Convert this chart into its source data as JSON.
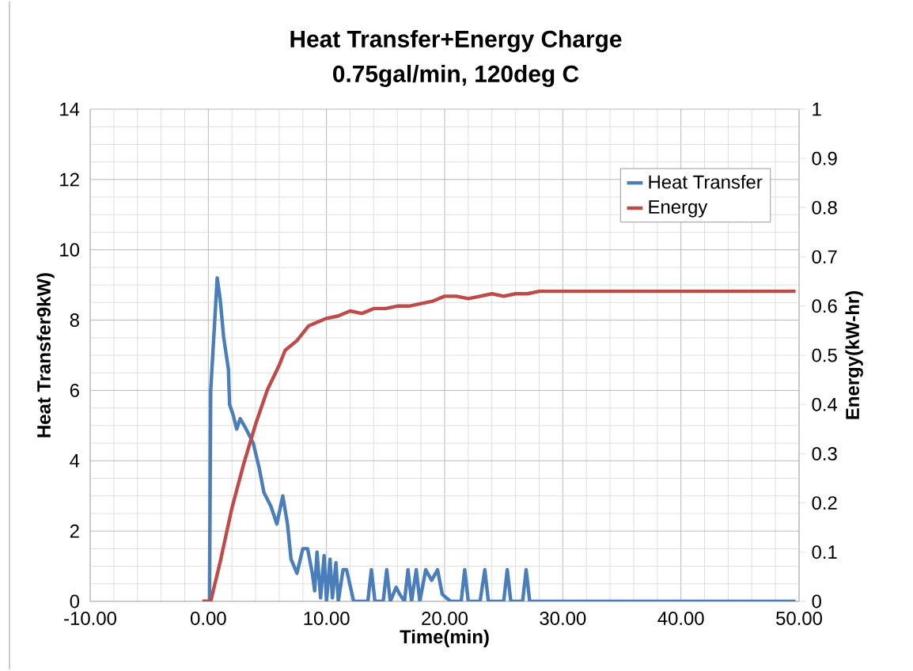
{
  "chart_data": {
    "type": "line",
    "title": "Heat Transfer+Energy Charge",
    "subtitle": "0.75gal/min, 120deg C",
    "xlabel": "Time(min)",
    "ylabel": "Heat Transfer9kW)",
    "y2label": "Energy(kW-hr)",
    "xlim": [
      -10,
      50
    ],
    "xticks": [
      {
        "value": -10,
        "label": "-10.00"
      },
      {
        "value": 0,
        "label": "0.00"
      },
      {
        "value": 10,
        "label": "10.00"
      },
      {
        "value": 20,
        "label": "20.00"
      },
      {
        "value": 30,
        "label": "30.00"
      },
      {
        "value": 40,
        "label": "40.00"
      },
      {
        "value": 50,
        "label": "50.00"
      }
    ],
    "ylim": [
      0,
      14
    ],
    "yticks": [
      0,
      2,
      4,
      6,
      8,
      10,
      12,
      14
    ],
    "y2lim": [
      0,
      1
    ],
    "y2ticks": [
      0,
      0.1,
      0.2,
      0.3,
      0.4,
      0.5,
      0.6,
      0.7,
      0.8,
      0.9,
      1
    ],
    "grid": true,
    "legend": "top right",
    "series": [
      {
        "name": "Heat Transfer",
        "color": "#4a7ebb",
        "x": [
          -0.5,
          0.1,
          0.2,
          0.75,
          1.0,
          1.3,
          1.7,
          1.8,
          2.1,
          2.4,
          2.7,
          3.2,
          3.8,
          4.3,
          4.7,
          5.3,
          5.8,
          6.3,
          6.7,
          7.0,
          7.5,
          8.0,
          8.4,
          8.8,
          9.0,
          9.2,
          9.5,
          9.8,
          10.0,
          10.3,
          10.5,
          10.8,
          11.0,
          11.4,
          11.7,
          12.3,
          13.5,
          13.8,
          14.1,
          14.8,
          15.1,
          15.4,
          15.9,
          16.2,
          16.6,
          16.9,
          17.2,
          17.6,
          17.9,
          18.4,
          18.9,
          19.4,
          19.8,
          20.5,
          21.4,
          21.7,
          22.0,
          23.0,
          23.4,
          23.7,
          25.0,
          25.3,
          25.6,
          26.6,
          26.9,
          27.2,
          49.7
        ],
        "values": [
          0,
          0,
          6,
          9.2,
          8.6,
          7.5,
          6.6,
          5.6,
          5.3,
          4.9,
          5.2,
          4.9,
          4.5,
          3.8,
          3.1,
          2.7,
          2.2,
          3.0,
          2.2,
          1.2,
          0.8,
          1.5,
          1.5,
          0.8,
          0.3,
          1.4,
          0.1,
          1.3,
          0,
          1.2,
          0.1,
          1.1,
          0,
          0.9,
          0.9,
          0,
          0,
          0.9,
          0,
          0,
          0.9,
          0,
          0.4,
          0.2,
          0,
          0.9,
          0,
          0.9,
          0,
          0.9,
          0.6,
          0.9,
          0.2,
          0,
          0,
          0.9,
          0,
          0,
          0.9,
          0,
          0,
          0.9,
          0,
          0,
          0.9,
          0,
          0
        ]
      },
      {
        "name": "Energy",
        "color": "#be4b48",
        "axis": "y2",
        "x": [
          -0.5,
          0.2,
          1,
          2,
          3,
          4,
          5,
          6,
          6.5,
          7.5,
          8.5,
          10,
          11,
          12,
          13,
          14,
          15,
          16,
          17,
          18,
          19,
          20,
          21,
          22,
          23,
          24,
          25,
          26,
          27,
          28,
          49.7
        ],
        "values": [
          0,
          0,
          0.08,
          0.19,
          0.28,
          0.36,
          0.43,
          0.48,
          0.51,
          0.53,
          0.56,
          0.575,
          0.58,
          0.59,
          0.585,
          0.595,
          0.595,
          0.6,
          0.6,
          0.605,
          0.61,
          0.62,
          0.62,
          0.615,
          0.62,
          0.625,
          0.62,
          0.625,
          0.625,
          0.63,
          0.63
        ]
      }
    ]
  }
}
